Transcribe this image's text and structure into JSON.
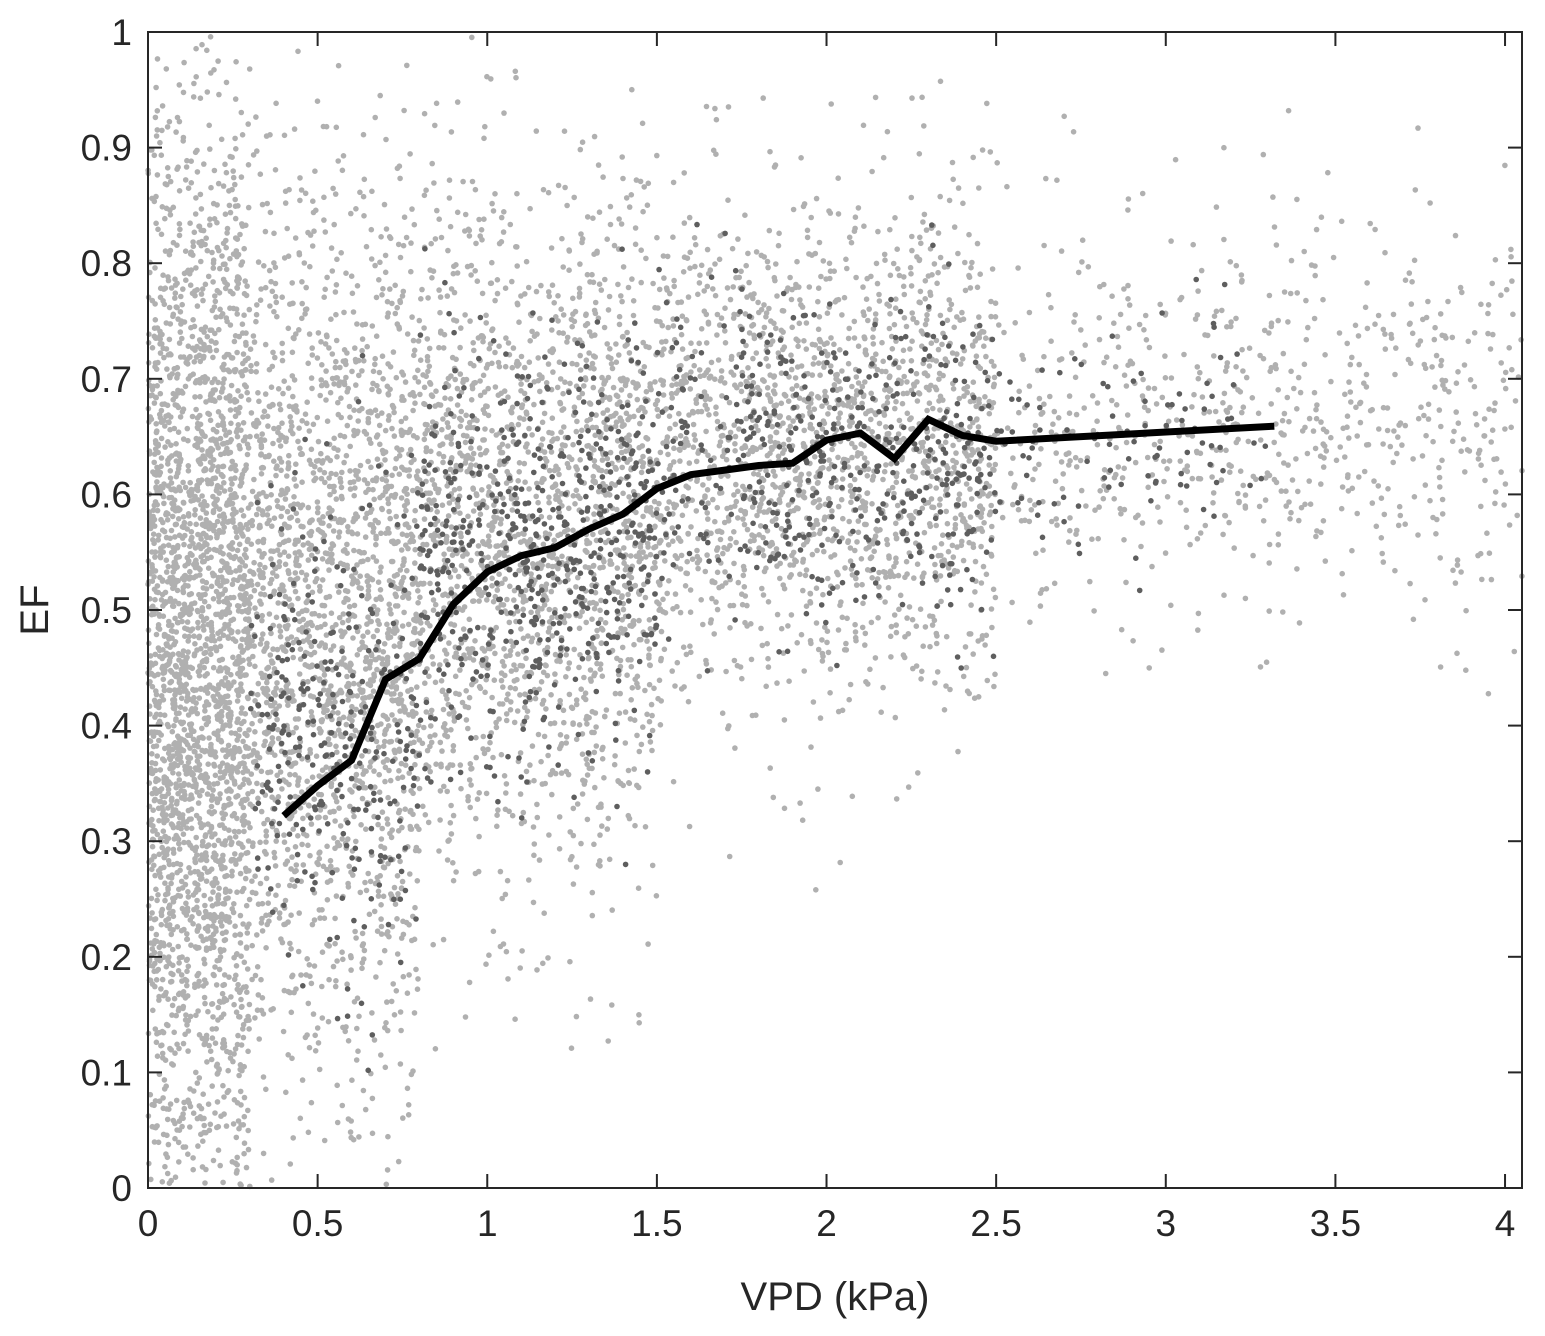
{
  "chart_data": {
    "type": "scatter",
    "title": "",
    "xlabel": "VPD (kPa)",
    "ylabel": "EF",
    "xlim": [
      0,
      4.05
    ],
    "ylim": [
      0,
      1
    ],
    "xticks": [
      "0",
      "0.5",
      "1",
      "1.5",
      "2",
      "2.5",
      "3",
      "3.5",
      "4"
    ],
    "yticks": [
      "0",
      "0.1",
      "0.2",
      "0.3",
      "0.4",
      "0.5",
      "0.6",
      "0.7",
      "0.8",
      "0.9",
      "1"
    ],
    "grid": false,
    "legend": "none",
    "colors": {
      "all_points": "#b0b0b0",
      "subset_points": "#5e5e5e",
      "mean_line": "#000000",
      "axis": "#262626"
    },
    "series": [
      {
        "kind": "scatter",
        "description_role": "all observations",
        "clusters": [
          {
            "vpd_range": [
              0.0,
              0.3
            ],
            "ef_center": 0.45,
            "ef_spread": 0.55,
            "share": 0.3
          },
          {
            "vpd_range": [
              0.3,
              0.8
            ],
            "ef_center": 0.48,
            "ef_spread": 0.42,
            "share": 0.22
          },
          {
            "vpd_range": [
              0.8,
              1.5
            ],
            "ef_center": 0.57,
            "ef_spread": 0.32,
            "share": 0.2
          },
          {
            "vpd_range": [
              1.5,
              2.5
            ],
            "ef_center": 0.64,
            "ef_spread": 0.24,
            "share": 0.2
          },
          {
            "vpd_range": [
              2.5,
              4.05
            ],
            "ef_center": 0.66,
            "ef_spread": 0.18,
            "share": 0.08
          }
        ]
      },
      {
        "kind": "scatter",
        "description_role": "highlighted subset",
        "clusters": [
          {
            "vpd_range": [
              0.3,
              0.8
            ],
            "ef_center": 0.4,
            "ef_spread": 0.22,
            "share": 0.2
          },
          {
            "vpd_range": [
              0.8,
              1.5
            ],
            "ef_center": 0.56,
            "ef_spread": 0.2,
            "share": 0.4
          },
          {
            "vpd_range": [
              1.5,
              2.5
            ],
            "ef_center": 0.63,
            "ef_spread": 0.16,
            "share": 0.33
          },
          {
            "vpd_range": [
              2.5,
              3.3
            ],
            "ef_center": 0.65,
            "ef_spread": 0.12,
            "share": 0.07
          }
        ]
      },
      {
        "kind": "line",
        "description_role": "binned mean",
        "x": [
          0.4,
          0.5,
          0.6,
          0.7,
          0.8,
          0.9,
          1.0,
          1.1,
          1.2,
          1.3,
          1.4,
          1.5,
          1.6,
          1.7,
          1.8,
          1.9,
          2.0,
          2.1,
          2.2,
          2.3,
          2.4,
          2.5,
          3.32
        ],
        "y": [
          0.322,
          0.348,
          0.37,
          0.44,
          0.458,
          0.505,
          0.533,
          0.547,
          0.554,
          0.57,
          0.583,
          0.605,
          0.617,
          0.621,
          0.625,
          0.627,
          0.647,
          0.653,
          0.631,
          0.665,
          0.651,
          0.646,
          0.659
        ]
      }
    ]
  }
}
